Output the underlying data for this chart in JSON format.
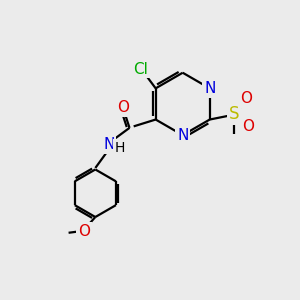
{
  "bg_color": "#ebebeb",
  "atom_colors": {
    "C": "#000000",
    "N": "#0000dd",
    "O": "#dd0000",
    "Cl": "#00aa00",
    "S": "#bbbb00",
    "H": "#000000"
  },
  "bond_color": "#000000",
  "bond_width": 1.6,
  "font_size": 11
}
